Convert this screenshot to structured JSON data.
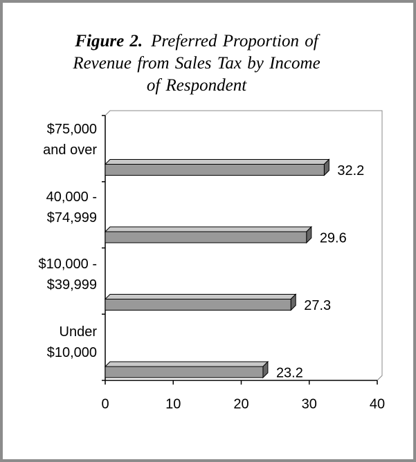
{
  "chart_data": {
    "type": "bar",
    "orientation": "horizontal",
    "figure_label": "Figure 2.",
    "title": "Preferred Proportion of Revenue from Sales Tax by Income of Respondent",
    "categories": [
      "$75,000 and over",
      "40,000 - $74,999",
      "$10,000 - $39,999",
      "Under $10,000"
    ],
    "values": [
      32.2,
      29.6,
      27.3,
      23.2
    ],
    "color": "#999999",
    "xlim": [
      0,
      40
    ],
    "xticks": [
      0,
      10,
      20,
      30,
      40
    ],
    "grid": false
  }
}
